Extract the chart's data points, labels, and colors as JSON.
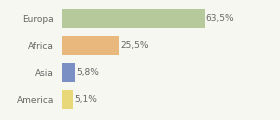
{
  "categories": [
    "Europa",
    "Africa",
    "Asia",
    "America"
  ],
  "values": [
    63.5,
    25.5,
    5.8,
    5.1
  ],
  "labels": [
    "63,5%",
    "25,5%",
    "5,8%",
    "5,1%"
  ],
  "bar_colors": [
    "#b5c99a",
    "#e8b87c",
    "#7b8fc4",
    "#e8d87a"
  ],
  "background_color": "#f7f7f2",
  "text_color": "#666666",
  "label_fontsize": 6.5,
  "tick_fontsize": 6.5,
  "bar_height": 0.72,
  "xlim": 82
}
